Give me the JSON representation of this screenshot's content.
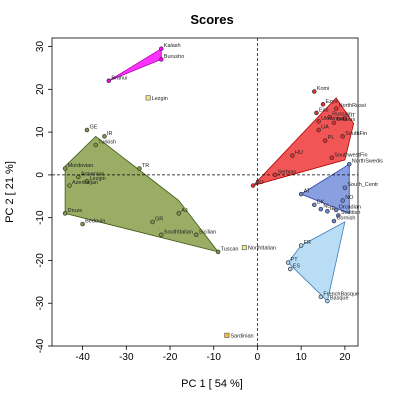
{
  "chart_data": {
    "type": "scatter",
    "title": "Scores",
    "xlabel": "PC 1 [ 54 %]",
    "ylabel": "PC 2 [ 21 %]",
    "xlim": [
      -47,
      23
    ],
    "ylim": [
      -40,
      32
    ],
    "xticks": [
      -40,
      -30,
      -20,
      -10,
      0,
      10,
      20
    ],
    "yticks": [
      -40,
      -30,
      -20,
      -10,
      0,
      10,
      20,
      30
    ],
    "ref_lines": {
      "x": 0,
      "y": 0,
      "style": "dashed"
    },
    "groups": [
      {
        "fill": "#ee2b2b",
        "stroke": "#b00000",
        "hull": [
          [
            -1,
            -2.5
          ],
          [
            18,
            18
          ],
          [
            22,
            12
          ],
          [
            20,
            3.5
          ]
        ],
        "points": [
          {
            "label": "Komi",
            "x": 13,
            "y": 19.5
          },
          {
            "label": "Ezya",
            "x": 15,
            "y": 16.5
          },
          {
            "label": "NorthRussi",
            "x": 18,
            "y": 15.5
          },
          {
            "label": "Eas",
            "x": 13.5,
            "y": 14.5
          },
          {
            "label": "Russian",
            "x": 16.5,
            "y": 13.5
          },
          {
            "label": "LIT",
            "x": 20,
            "y": 13.2
          },
          {
            "label": "Ukrainian",
            "x": 14,
            "y": 12.5
          },
          {
            "label": "Belarus",
            "x": 17.5,
            "y": 12.2
          },
          {
            "label": "UA",
            "x": 14,
            "y": 10.5
          },
          {
            "label": "SouthFin",
            "x": 19.5,
            "y": 9
          },
          {
            "label": "PL",
            "x": 15.5,
            "y": 8
          },
          {
            "label": "HU",
            "x": 8,
            "y": 4.5
          },
          {
            "label": "SouthwestFin",
            "x": 17,
            "y": 4
          },
          {
            "label": "Serbian",
            "x": 4,
            "y": 0
          },
          {
            "label": "RO",
            "x": -1,
            "y": -2.5
          }
        ]
      },
      {
        "fill": "#6b87d8",
        "stroke": "#2a45a8",
        "hull": [
          [
            10,
            -4.5
          ],
          [
            21,
            2.5
          ],
          [
            21,
            -9
          ]
        ],
        "points": [
          {
            "label": "NorthSwedis",
            "x": 21,
            "y": 2.5
          },
          {
            "label": "AT",
            "x": 10,
            "y": -4.5
          },
          {
            "label": "South_Centr",
            "x": 20,
            "y": -3
          },
          {
            "label": "NO",
            "x": 19.5,
            "y": -6
          },
          {
            "label": "DK",
            "x": 13,
            "y": -7
          },
          {
            "label": "NL",
            "x": 14.5,
            "y": -8
          },
          {
            "label": "IE",
            "x": 16,
            "y": -8.5
          },
          {
            "label": "Orcadian",
            "x": 18,
            "y": -8.2
          },
          {
            "label": "Scottish",
            "x": 18.5,
            "y": -9.5
          },
          {
            "label": "Cornish",
            "x": 17.5,
            "y": -10.8
          }
        ]
      },
      {
        "fill": "#a9d4f4",
        "stroke": "#3d7fb5",
        "hull": [
          [
            7,
            -20.5
          ],
          [
            16,
            -29.5
          ],
          [
            20,
            -11
          ],
          [
            10,
            -16.5
          ]
        ],
        "points": [
          {
            "label": "FR",
            "x": 10,
            "y": -16.5
          },
          {
            "label": "PT",
            "x": 7,
            "y": -20.5
          },
          {
            "label": "ES",
            "x": 7.5,
            "y": -22
          },
          {
            "label": "FrenchBasque",
            "x": 14.5,
            "y": -28.5
          },
          {
            "label": "Basque",
            "x": 16,
            "y": -29.5
          }
        ]
      },
      {
        "fill": "#80983e",
        "stroke": "#3f5a12",
        "hull": [
          [
            -37,
            9
          ],
          [
            -44,
            2
          ],
          [
            -44,
            -9
          ],
          [
            -9,
            -18
          ],
          [
            -18,
            -6
          ]
        ],
        "points": [
          {
            "label": "GE",
            "x": -39,
            "y": 10.5
          },
          {
            "label": "IR",
            "x": -35,
            "y": 9
          },
          {
            "label": "Turkish",
            "x": -37,
            "y": 7
          },
          {
            "label": "TR",
            "x": -27,
            "y": 1.5
          },
          {
            "label": "Mordovian",
            "x": -44,
            "y": 1.5
          },
          {
            "label": "Armenian",
            "x": -41,
            "y": -0.5
          },
          {
            "label": "Lezgin",
            "x": -39,
            "y": -1.5
          },
          {
            "label": "Azerbaijan",
            "x": -43,
            "y": -2.5
          },
          {
            "label": "Druze",
            "x": -44,
            "y": -9
          },
          {
            "label": "Bedouin",
            "x": -40,
            "y": -11.5
          },
          {
            "label": "GR",
            "x": -24,
            "y": -11
          },
          {
            "label": "AJ",
            "x": -18,
            "y": -9
          },
          {
            "label": "SouthItalian",
            "x": -22,
            "y": -14
          },
          {
            "label": "Sicilian",
            "x": -14,
            "y": -14
          },
          {
            "label": "Tuscan",
            "x": -9,
            "y": -18
          }
        ]
      },
      {
        "fill": "#ff00ff",
        "stroke": "#b000b0",
        "hull": [
          [
            -34,
            22
          ],
          [
            -22,
            29.5
          ],
          [
            -22,
            27
          ]
        ],
        "points": [
          {
            "label": "Kalash",
            "x": -22,
            "y": 29.5
          },
          {
            "label": "Burusho",
            "x": -22,
            "y": 27
          },
          {
            "label": "Brahui",
            "x": -34,
            "y": 22
          }
        ]
      }
    ],
    "singletons": [
      {
        "label": "Lezgin",
        "x": -25,
        "y": 18,
        "fill": "#f0e68c"
      },
      {
        "label": "NorthItalian",
        "x": -3,
        "y": -17,
        "fill": "#f0e68c"
      },
      {
        "label": "Sardinian",
        "x": -7,
        "y": -37.5,
        "fill": "#f2c230"
      }
    ]
  }
}
